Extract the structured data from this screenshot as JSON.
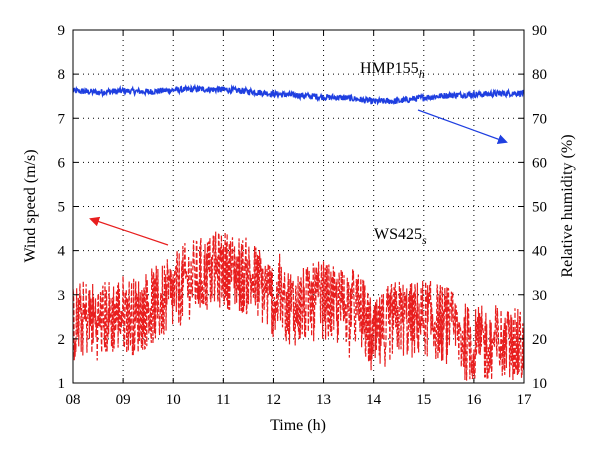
{
  "chart_data": {
    "type": "line",
    "xlabel": "Time (h)",
    "ylabel_left": "Wind speed (m/s)",
    "ylabel_right": "Relative humidity (%)",
    "x_ticks": [
      "08",
      "09",
      "10",
      "11",
      "12",
      "13",
      "14",
      "15",
      "16",
      "17"
    ],
    "x_range": [
      8,
      17
    ],
    "y_left_ticks": [
      "1",
      "2",
      "3",
      "4",
      "5",
      "6",
      "7",
      "8",
      "9"
    ],
    "y_left_range": [
      1,
      9
    ],
    "y_right_ticks": [
      "10",
      "20",
      "30",
      "40",
      "50",
      "60",
      "70",
      "80",
      "90"
    ],
    "y_right_range": [
      10,
      90
    ],
    "grid": true,
    "annotations": {
      "hmp": {
        "base": "HMP155",
        "sub": "h"
      },
      "ws": {
        "base": "WS425",
        "sub": "s"
      }
    },
    "series": [
      {
        "name": "HMP155h",
        "axis": "right",
        "color": "#1f3fe0",
        "style": "solid",
        "x": [
          8.0,
          8.5,
          9.0,
          9.5,
          10.0,
          10.5,
          11.0,
          11.5,
          12.0,
          12.5,
          13.0,
          13.5,
          14.0,
          14.5,
          15.0,
          15.5,
          16.0,
          16.5,
          17.0
        ],
        "values": [
          76.2,
          75.9,
          76.2,
          76.0,
          76.4,
          76.6,
          76.5,
          76.1,
          75.5,
          75.2,
          74.8,
          74.6,
          73.8,
          73.9,
          74.7,
          75.2,
          75.4,
          75.6,
          75.7
        ]
      },
      {
        "name": "WS425s",
        "axis": "left",
        "color": "#e81e1e",
        "style": "dashed",
        "x": [
          8.0,
          8.25,
          8.5,
          8.75,
          9.0,
          9.25,
          9.5,
          9.75,
          10.0,
          10.25,
          10.5,
          10.75,
          11.0,
          11.25,
          11.5,
          11.75,
          12.0,
          12.25,
          12.5,
          12.75,
          13.0,
          13.25,
          13.5,
          13.75,
          14.0,
          14.25,
          14.5,
          14.75,
          15.0,
          15.25,
          15.5,
          15.75,
          16.0,
          16.25,
          16.5,
          16.75,
          17.0
        ],
        "values": [
          2.3,
          2.5,
          2.4,
          2.5,
          2.6,
          2.5,
          2.7,
          2.8,
          3.0,
          3.3,
          3.4,
          3.5,
          3.6,
          3.5,
          3.4,
          3.2,
          2.9,
          2.8,
          2.7,
          2.8,
          2.9,
          2.7,
          2.8,
          2.6,
          1.9,
          2.3,
          2.5,
          2.4,
          2.5,
          2.4,
          2.3,
          2.0,
          1.8,
          1.9,
          1.9,
          1.8,
          1.8
        ]
      }
    ]
  }
}
